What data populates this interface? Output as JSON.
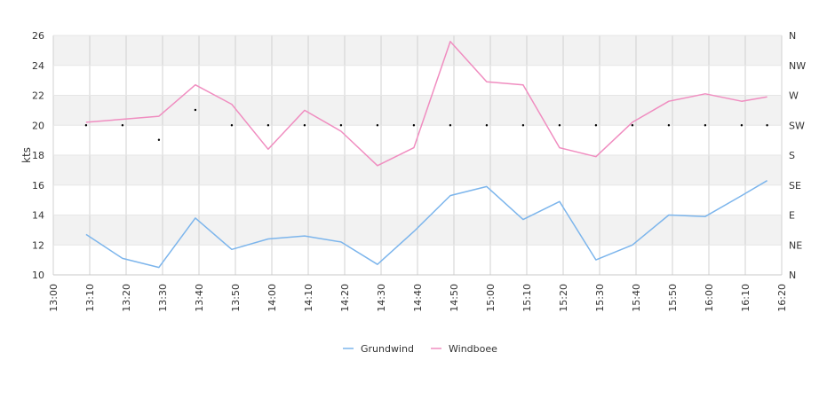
{
  "chart_data": {
    "type": "line",
    "ylabel": "kts",
    "ylim": [
      10,
      26
    ],
    "y_ticks": [
      "10",
      "12",
      "14",
      "16",
      "18",
      "20",
      "22",
      "24",
      "26"
    ],
    "x_labels": [
      "13:00",
      "13:10",
      "13:20",
      "13:30",
      "13:40",
      "13:50",
      "14:00",
      "14:10",
      "14:20",
      "14:30",
      "14:40",
      "14:50",
      "15:00",
      "15:10",
      "15:20",
      "15:30",
      "15:40",
      "15:50",
      "16:00",
      "16:10",
      "16:20"
    ],
    "x_range_minutes": [
      0,
      200
    ],
    "direction_axis": {
      "labels": [
        "N",
        "NE",
        "E",
        "SE",
        "S",
        "SW",
        "W",
        "NW",
        "N"
      ],
      "ylim_degrees": [
        0,
        360
      ]
    },
    "grid": true,
    "legend_position": "bottom",
    "series": [
      {
        "name": "Grundwind",
        "color": "#7cb5ec",
        "x_minutes": [
          9,
          19,
          29,
          39,
          49,
          59,
          69,
          79,
          89,
          99,
          109,
          119,
          129,
          139,
          149,
          159,
          169,
          179,
          189,
          196
        ],
        "values": [
          12.7,
          11.1,
          10.5,
          13.8,
          11.7,
          12.4,
          12.6,
          12.2,
          10.7,
          12.9,
          15.3,
          15.9,
          13.7,
          14.9,
          11.0,
          12.0,
          14.0,
          13.9,
          15.3,
          16.3
        ]
      },
      {
        "name": "Windboee",
        "color": "#f08dc0",
        "x_minutes": [
          9,
          19,
          29,
          39,
          49,
          59,
          69,
          79,
          89,
          99,
          109,
          119,
          129,
          139,
          149,
          159,
          169,
          179,
          189,
          196
        ],
        "values": [
          20.2,
          20.4,
          20.6,
          22.7,
          21.4,
          18.4,
          21.0,
          19.6,
          17.3,
          18.5,
          25.6,
          22.9,
          22.7,
          18.5,
          17.9,
          20.2,
          21.6,
          22.1,
          21.6,
          21.9
        ]
      }
    ],
    "direction_points": {
      "name": "direction",
      "x_minutes": [
        9,
        19,
        29,
        39,
        49,
        59,
        69,
        79,
        89,
        99,
        109,
        119,
        129,
        139,
        149,
        159,
        169,
        179,
        189,
        196
      ],
      "degrees": [
        225,
        225,
        203,
        248,
        225,
        225,
        225,
        225,
        225,
        225,
        225,
        225,
        225,
        225,
        225,
        225,
        225,
        225,
        225,
        225
      ]
    }
  }
}
